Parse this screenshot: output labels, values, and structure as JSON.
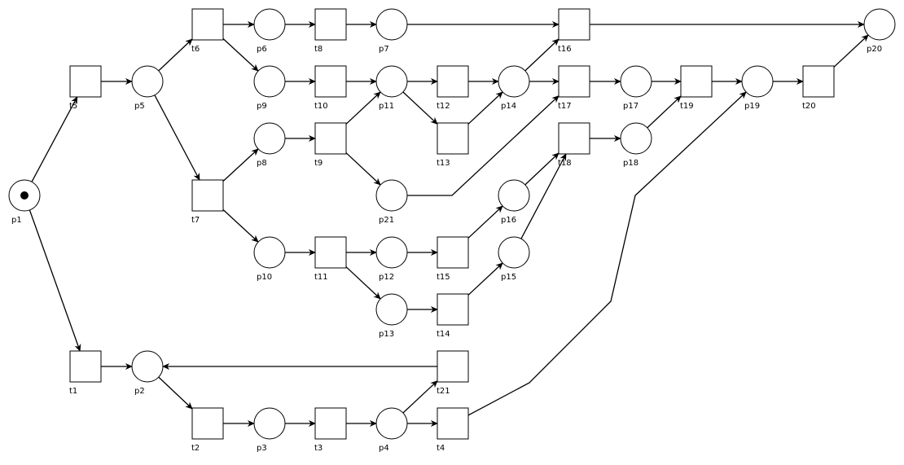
{
  "places": [
    {
      "id": "p1",
      "label": "p1",
      "tokens": 1
    },
    {
      "id": "p2",
      "label": "p2",
      "tokens": 0
    },
    {
      "id": "p3",
      "label": "p3",
      "tokens": 0
    },
    {
      "id": "p4",
      "label": "p4",
      "tokens": 0
    },
    {
      "id": "p5",
      "label": "p5",
      "tokens": 0
    },
    {
      "id": "p6",
      "label": "p6",
      "tokens": 0
    },
    {
      "id": "p7",
      "label": "p7",
      "tokens": 0
    },
    {
      "id": "p8",
      "label": "p8",
      "tokens": 0
    },
    {
      "id": "p9",
      "label": "p9",
      "tokens": 0
    },
    {
      "id": "p10",
      "label": "p10",
      "tokens": 0
    },
    {
      "id": "p11",
      "label": "p11",
      "tokens": 0
    },
    {
      "id": "p12",
      "label": "p12",
      "tokens": 0
    },
    {
      "id": "p13",
      "label": "p13",
      "tokens": 0
    },
    {
      "id": "p14",
      "label": "p14",
      "tokens": 0
    },
    {
      "id": "p15",
      "label": "p15",
      "tokens": 0
    },
    {
      "id": "p16",
      "label": "p16",
      "tokens": 0
    },
    {
      "id": "p17",
      "label": "p17",
      "tokens": 0
    },
    {
      "id": "p18",
      "label": "p18",
      "tokens": 0
    },
    {
      "id": "p19",
      "label": "p19",
      "tokens": 0
    },
    {
      "id": "p20",
      "label": "p20",
      "tokens": 0
    },
    {
      "id": "p21",
      "label": "p21",
      "tokens": 0
    }
  ],
  "transitions": [
    {
      "id": "t1",
      "label": "t1"
    },
    {
      "id": "t2",
      "label": "t2"
    },
    {
      "id": "t3",
      "label": "t3"
    },
    {
      "id": "t4",
      "label": "t4"
    },
    {
      "id": "t5",
      "label": "t5"
    },
    {
      "id": "t6",
      "label": "t6"
    },
    {
      "id": "t7",
      "label": "t7"
    },
    {
      "id": "t8",
      "label": "t8"
    },
    {
      "id": "t9",
      "label": "t9"
    },
    {
      "id": "t10",
      "label": "t10"
    },
    {
      "id": "t11",
      "label": "t11"
    },
    {
      "id": "t12",
      "label": "t12"
    },
    {
      "id": "t13",
      "label": "t13"
    },
    {
      "id": "t14",
      "label": "t14"
    },
    {
      "id": "t15",
      "label": "t15"
    },
    {
      "id": "t16",
      "label": "t16"
    },
    {
      "id": "t17",
      "label": "t17"
    },
    {
      "id": "t18",
      "label": "t18"
    },
    {
      "id": "t19",
      "label": "t19"
    },
    {
      "id": "t20",
      "label": "t20"
    },
    {
      "id": "t21",
      "label": "t21"
    }
  ],
  "arcs": [
    {
      "from": "p1",
      "to": "t5"
    },
    {
      "from": "p1",
      "to": "t1"
    },
    {
      "from": "t5",
      "to": "p5"
    },
    {
      "from": "p5",
      "to": "t6"
    },
    {
      "from": "p5",
      "to": "t7"
    },
    {
      "from": "t6",
      "to": "p6"
    },
    {
      "from": "t6",
      "to": "p9"
    },
    {
      "from": "p6",
      "to": "t8"
    },
    {
      "from": "t8",
      "to": "p7"
    },
    {
      "from": "p7",
      "to": "t16"
    },
    {
      "from": "p9",
      "to": "t10"
    },
    {
      "from": "t10",
      "to": "p11"
    },
    {
      "from": "p11",
      "to": "t12"
    },
    {
      "from": "p11",
      "to": "t13"
    },
    {
      "from": "t12",
      "to": "p14"
    },
    {
      "from": "t13",
      "to": "p14"
    },
    {
      "from": "p14",
      "to": "t16"
    },
    {
      "from": "p14",
      "to": "t17"
    },
    {
      "from": "t16",
      "to": "p20"
    },
    {
      "from": "t7",
      "to": "p8"
    },
    {
      "from": "t7",
      "to": "p10"
    },
    {
      "from": "p8",
      "to": "t9"
    },
    {
      "from": "t9",
      "to": "p11"
    },
    {
      "from": "t9",
      "to": "p21"
    },
    {
      "from": "p21",
      "to": "t17"
    },
    {
      "from": "t17",
      "to": "p17"
    },
    {
      "from": "p17",
      "to": "t19"
    },
    {
      "from": "t18",
      "to": "p18"
    },
    {
      "from": "p18",
      "to": "t19"
    },
    {
      "from": "t19",
      "to": "p19"
    },
    {
      "from": "p19",
      "to": "t20"
    },
    {
      "from": "t20",
      "to": "p20"
    },
    {
      "from": "p10",
      "to": "t11"
    },
    {
      "from": "t11",
      "to": "p12"
    },
    {
      "from": "t11",
      "to": "p13"
    },
    {
      "from": "p12",
      "to": "t15"
    },
    {
      "from": "p13",
      "to": "t14"
    },
    {
      "from": "t15",
      "to": "p16"
    },
    {
      "from": "t14",
      "to": "p15"
    },
    {
      "from": "p16",
      "to": "t18"
    },
    {
      "from": "p15",
      "to": "t18"
    },
    {
      "from": "t1",
      "to": "p2"
    },
    {
      "from": "p2",
      "to": "t2"
    },
    {
      "from": "t2",
      "to": "p3"
    },
    {
      "from": "p3",
      "to": "t3"
    },
    {
      "from": "t3",
      "to": "p4"
    },
    {
      "from": "p4",
      "to": "t21"
    },
    {
      "from": "p4",
      "to": "t4"
    },
    {
      "from": "t21",
      "to": "p2"
    },
    {
      "from": "t4",
      "to": "p19"
    }
  ]
}
